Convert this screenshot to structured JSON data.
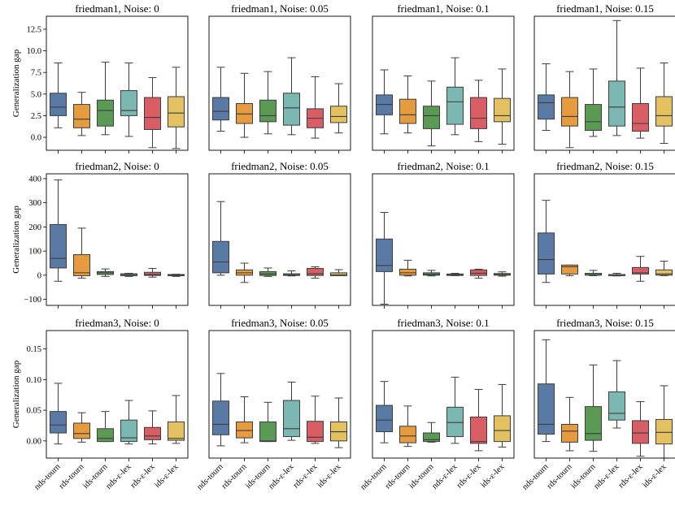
{
  "chart_data": {
    "type": "box",
    "categories": [
      "nds-tourn",
      "rds-tourn",
      "ids-tourn",
      "nds-ε-lex",
      "rds-ε-lex",
      "ids-ε-lex"
    ],
    "colors": [
      "#5a7aa6",
      "#e69b3f",
      "#5a9a55",
      "#7ab8b1",
      "#d85d64",
      "#e3c161"
    ],
    "ylabel": "Generalization gap",
    "panels": [
      {
        "title": "friedman1, Noise: 0",
        "ylim": [
          -1.5,
          14
        ],
        "yticks": [
          0.0,
          2.5,
          5.0,
          7.5,
          10.0,
          12.5
        ],
        "tick_labels": [
          "0.0",
          "2.5",
          "5.0",
          "7.5",
          "10.0",
          "12.5"
        ],
        "boxes": [
          [
            1.1,
            2.5,
            3.5,
            5.1,
            8.6
          ],
          [
            0.2,
            1.1,
            2.1,
            3.8,
            5.2
          ],
          [
            0.3,
            1.3,
            3.1,
            4.3,
            8.7
          ],
          [
            0.1,
            2.5,
            3.1,
            5.4,
            8.6
          ],
          [
            -1.2,
            0.9,
            2.3,
            4.6,
            6.9
          ],
          [
            -1.3,
            1.2,
            2.8,
            4.7,
            8.1
          ]
        ]
      },
      {
        "title": "friedman1, Noise: 0.05",
        "ylim": [
          -1.5,
          14
        ],
        "boxes": [
          [
            0.7,
            2.0,
            3.0,
            4.6,
            8.1
          ],
          [
            0.0,
            1.6,
            2.7,
            3.9,
            7.4
          ],
          [
            0.4,
            1.8,
            2.5,
            4.3,
            7.6
          ],
          [
            0.3,
            1.4,
            3.4,
            5.1,
            9.2
          ],
          [
            -0.1,
            1.1,
            2.2,
            3.3,
            7.0
          ],
          [
            0.5,
            1.7,
            2.4,
            3.6,
            6.2
          ]
        ]
      },
      {
        "title": "friedman1, Noise: 0.1",
        "ylim": [
          -1.5,
          14
        ],
        "boxes": [
          [
            0.4,
            2.6,
            3.8,
            4.9,
            7.8
          ],
          [
            0.5,
            1.6,
            2.6,
            4.4,
            7.1
          ],
          [
            -1.0,
            1.0,
            2.5,
            3.6,
            6.5
          ],
          [
            0.3,
            1.5,
            4.1,
            5.8,
            9.2
          ],
          [
            -0.5,
            1.0,
            2.2,
            4.6,
            6.6
          ],
          [
            -0.8,
            1.8,
            2.5,
            4.5,
            7.9
          ]
        ]
      },
      {
        "title": "friedman1, Noise: 0.15",
        "ylim": [
          -1.5,
          14
        ],
        "boxes": [
          [
            0.8,
            2.1,
            4.0,
            4.9,
            8.5
          ],
          [
            -1.2,
            1.3,
            2.4,
            4.6,
            7.6
          ],
          [
            0.1,
            0.8,
            1.8,
            3.8,
            7.9
          ],
          [
            0.2,
            1.3,
            3.5,
            6.5,
            13.5
          ],
          [
            -0.1,
            0.7,
            1.6,
            3.9,
            8.0
          ],
          [
            -0.7,
            1.3,
            2.5,
            4.7,
            8.6
          ]
        ]
      },
      {
        "title": "friedman2, Noise: 0",
        "ylim": [
          -125,
          420
        ],
        "yticks": [
          -100,
          0,
          100,
          200,
          300,
          400
        ],
        "tick_labels": [
          "−100",
          "0",
          "100",
          "200",
          "300",
          "400"
        ],
        "boxes": [
          [
            -25,
            30,
            70,
            210,
            395
          ],
          [
            -12,
            -2,
            10,
            85,
            195
          ],
          [
            -5,
            3,
            10,
            15,
            26
          ],
          [
            -5,
            -2,
            2,
            6,
            8
          ],
          [
            -8,
            -1,
            3,
            12,
            28
          ],
          [
            -5,
            -2,
            1,
            3,
            4
          ]
        ]
      },
      {
        "title": "friedman2, Noise: 0.05",
        "ylim": [
          -125,
          420
        ],
        "boxes": [
          [
            0,
            10,
            55,
            140,
            305
          ],
          [
            -30,
            0,
            10,
            22,
            50
          ],
          [
            -5,
            -1,
            5,
            15,
            30
          ],
          [
            -3,
            -1,
            2,
            6,
            18
          ],
          [
            -12,
            -1,
            6,
            28,
            35
          ],
          [
            -2,
            -2,
            2,
            10,
            23
          ]
        ]
      },
      {
        "title": "friedman2, Noise: 0.1",
        "ylim": [
          -125,
          420
        ],
        "boxes": [
          [
            -120,
            15,
            40,
            150,
            260
          ],
          [
            -3,
            0,
            10,
            25,
            62
          ],
          [
            -3,
            0,
            4,
            10,
            20
          ],
          [
            -2,
            -1,
            2,
            5,
            8
          ],
          [
            -12,
            -1,
            8,
            22,
            25
          ],
          [
            -4,
            0,
            3,
            7,
            14
          ]
        ]
      },
      {
        "title": "friedman2, Noise: 0.15",
        "ylim": [
          -125,
          420
        ],
        "boxes": [
          [
            -30,
            5,
            65,
            175,
            310
          ],
          [
            -2,
            5,
            35,
            42,
            42
          ],
          [
            -2,
            0,
            2,
            8,
            20
          ],
          [
            -3,
            -2,
            2,
            3,
            8
          ],
          [
            -25,
            5,
            10,
            32,
            78
          ],
          [
            -2,
            0,
            5,
            22,
            58
          ]
        ]
      },
      {
        "title": "friedman3, Noise: 0",
        "ylim": [
          -0.028,
          0.18
        ],
        "yticks": [
          0.0,
          0.05,
          0.1,
          0.15
        ],
        "tick_labels": [
          "0.00",
          "0.05",
          "0.10",
          "0.15"
        ],
        "boxes": [
          [
            -0.005,
            0.013,
            0.026,
            0.048,
            0.094
          ],
          [
            -0.002,
            0.004,
            0.012,
            0.029,
            0.046
          ],
          [
            -0.001,
            -0.001,
            0.004,
            0.02,
            0.048
          ],
          [
            -0.005,
            -0.001,
            0.005,
            0.034,
            0.066
          ],
          [
            -0.005,
            0.002,
            0.008,
            0.022,
            0.049
          ],
          [
            -0.004,
            0.001,
            0.004,
            0.031,
            0.074
          ]
        ]
      },
      {
        "title": "friedman3, Noise: 0.05",
        "ylim": [
          -0.028,
          0.18
        ],
        "boxes": [
          [
            -0.008,
            0.01,
            0.027,
            0.065,
            0.11
          ],
          [
            -0.003,
            0.005,
            0.017,
            0.031,
            0.072
          ],
          [
            -0.001,
            -0.001,
            0.0,
            0.031,
            0.063
          ],
          [
            0.001,
            0.007,
            0.02,
            0.066,
            0.096
          ],
          [
            -0.004,
            -0.001,
            0.006,
            0.032,
            0.073
          ],
          [
            -0.011,
            0.0,
            0.015,
            0.031,
            0.07
          ]
        ]
      },
      {
        "title": "friedman3, Noise: 0.1",
        "ylim": [
          -0.028,
          0.18
        ],
        "boxes": [
          [
            -0.003,
            0.015,
            0.034,
            0.058,
            0.097
          ],
          [
            -0.009,
            -0.003,
            0.008,
            0.024,
            0.057
          ],
          [
            -0.002,
            -0.001,
            0.002,
            0.013,
            0.03
          ],
          [
            -0.004,
            0.007,
            0.03,
            0.055,
            0.104
          ],
          [
            -0.016,
            -0.004,
            -0.001,
            0.039,
            0.084
          ],
          [
            -0.01,
            -0.001,
            0.017,
            0.041,
            0.092
          ]
        ]
      },
      {
        "title": "friedman3, Noise: 0.15",
        "ylim": [
          -0.028,
          0.18
        ],
        "boxes": [
          [
            -0.001,
            0.011,
            0.027,
            0.093,
            0.165
          ],
          [
            -0.016,
            -0.002,
            0.016,
            0.027,
            0.071
          ],
          [
            -0.017,
            0.001,
            0.012,
            0.056,
            0.124
          ],
          [
            0.021,
            0.034,
            0.045,
            0.08,
            0.131
          ],
          [
            -0.025,
            -0.004,
            0.013,
            0.033,
            0.064
          ],
          [
            -0.028,
            -0.005,
            0.014,
            0.035,
            0.09
          ]
        ]
      }
    ]
  }
}
